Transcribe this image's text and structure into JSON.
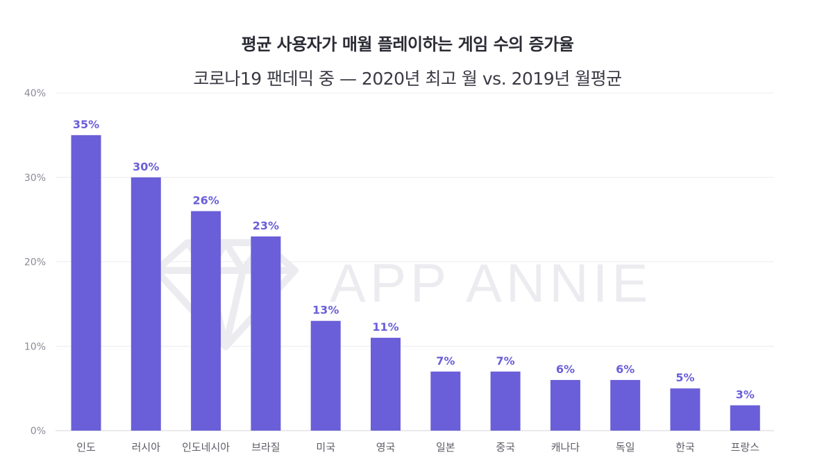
{
  "chart_data": {
    "type": "bar",
    "title": "평균 사용자가 매월 플레이하는 게임 수의 증가율",
    "subtitle": "코로나19 팬데믹 중 — 2020년 최고 월 vs. 2019년 월평균",
    "categories": [
      "인도",
      "러시아",
      "인도네시아",
      "브라질",
      "미국",
      "영국",
      "일본",
      "중국",
      "캐나다",
      "독일",
      "한국",
      "프랑스"
    ],
    "values": [
      35,
      30,
      26,
      23,
      13,
      11,
      7,
      7,
      6,
      6,
      5,
      3
    ],
    "data_labels": [
      "35%",
      "30%",
      "26%",
      "23%",
      "13%",
      "11%",
      "7%",
      "7%",
      "6%",
      "6%",
      "5%",
      "3%"
    ],
    "ylim": [
      0,
      40
    ],
    "yticks": [
      0,
      10,
      20,
      30,
      40
    ],
    "ytick_labels": [
      "0%",
      "10%",
      "20%",
      "30%",
      "40%"
    ],
    "xlabel": "",
    "ylabel": "",
    "grid": true,
    "bar_color": "#6a5fd8",
    "watermark": "APP ANNIE"
  }
}
